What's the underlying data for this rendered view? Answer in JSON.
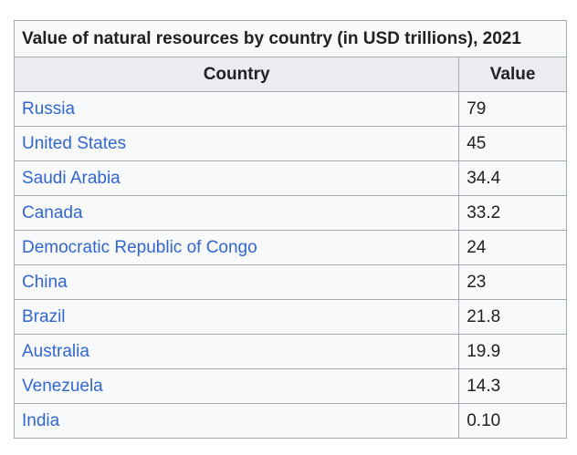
{
  "chart_data": {
    "type": "table",
    "title": "Value of natural resources by country (in USD trillions), 2021",
    "columns": [
      "Country",
      "Value"
    ],
    "rows": [
      [
        "Russia",
        "79"
      ],
      [
        "United States",
        "45"
      ],
      [
        "Saudi Arabia",
        "34.4"
      ],
      [
        "Canada",
        "33.2"
      ],
      [
        "Democratic Republic of Congo",
        "24"
      ],
      [
        "China",
        "23"
      ],
      [
        "Brazil",
        "21.8"
      ],
      [
        "Australia",
        "19.9"
      ],
      [
        "Venezuela",
        "14.3"
      ],
      [
        "India",
        "0.10"
      ]
    ]
  },
  "colors": {
    "link": "#3366cc",
    "header_bg": "#eaecf0",
    "cell_bg": "#f8f9fa",
    "border": "#a2a9b1"
  }
}
